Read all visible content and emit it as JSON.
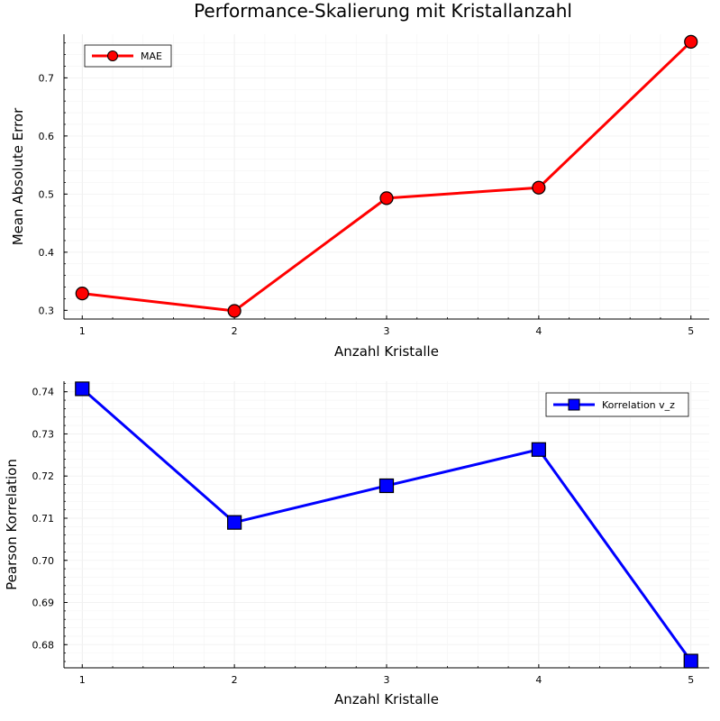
{
  "chart_data": [
    {
      "type": "line",
      "title": "Performance-Skalierung mit Kristallanzahl",
      "xlabel": "Anzahl Kristalle",
      "ylabel": "Mean Absolute Error",
      "xlim": [
        0.88,
        5.12
      ],
      "ylim": [
        0.285,
        0.775
      ],
      "xticks": [
        1,
        2,
        3,
        4,
        5
      ],
      "yticks": [
        0.3,
        0.4,
        0.5,
        0.6,
        0.7
      ],
      "ytick_labels": [
        "0.3",
        "0.4",
        "0.5",
        "0.6",
        "0.7"
      ],
      "grid": true,
      "legend_position": "top-left",
      "series": [
        {
          "name": "MAE",
          "color": "#ff0000",
          "marker": "circle",
          "x": [
            1,
            2,
            3,
            4,
            5
          ],
          "values": [
            0.329,
            0.299,
            0.493,
            0.511,
            0.762
          ]
        }
      ]
    },
    {
      "type": "line",
      "title": "",
      "xlabel": "Anzahl Kristalle",
      "ylabel": "Pearson Korrelation",
      "xlim": [
        0.88,
        5.12
      ],
      "ylim": [
        0.6745,
        0.7425
      ],
      "xticks": [
        1,
        2,
        3,
        4,
        5
      ],
      "yticks": [
        0.68,
        0.69,
        0.7,
        0.71,
        0.72,
        0.73,
        0.74
      ],
      "ytick_labels": [
        "0.68",
        "0.69",
        "0.70",
        "0.71",
        "0.72",
        "0.73",
        "0.74"
      ],
      "grid": true,
      "legend_position": "top-right",
      "series": [
        {
          "name": "Korrelation v_z",
          "color": "#0000ff",
          "marker": "square",
          "x": [
            1,
            2,
            3,
            4,
            5
          ],
          "values": [
            0.7407,
            0.709,
            0.7177,
            0.7263,
            0.6761
          ]
        }
      ]
    }
  ]
}
